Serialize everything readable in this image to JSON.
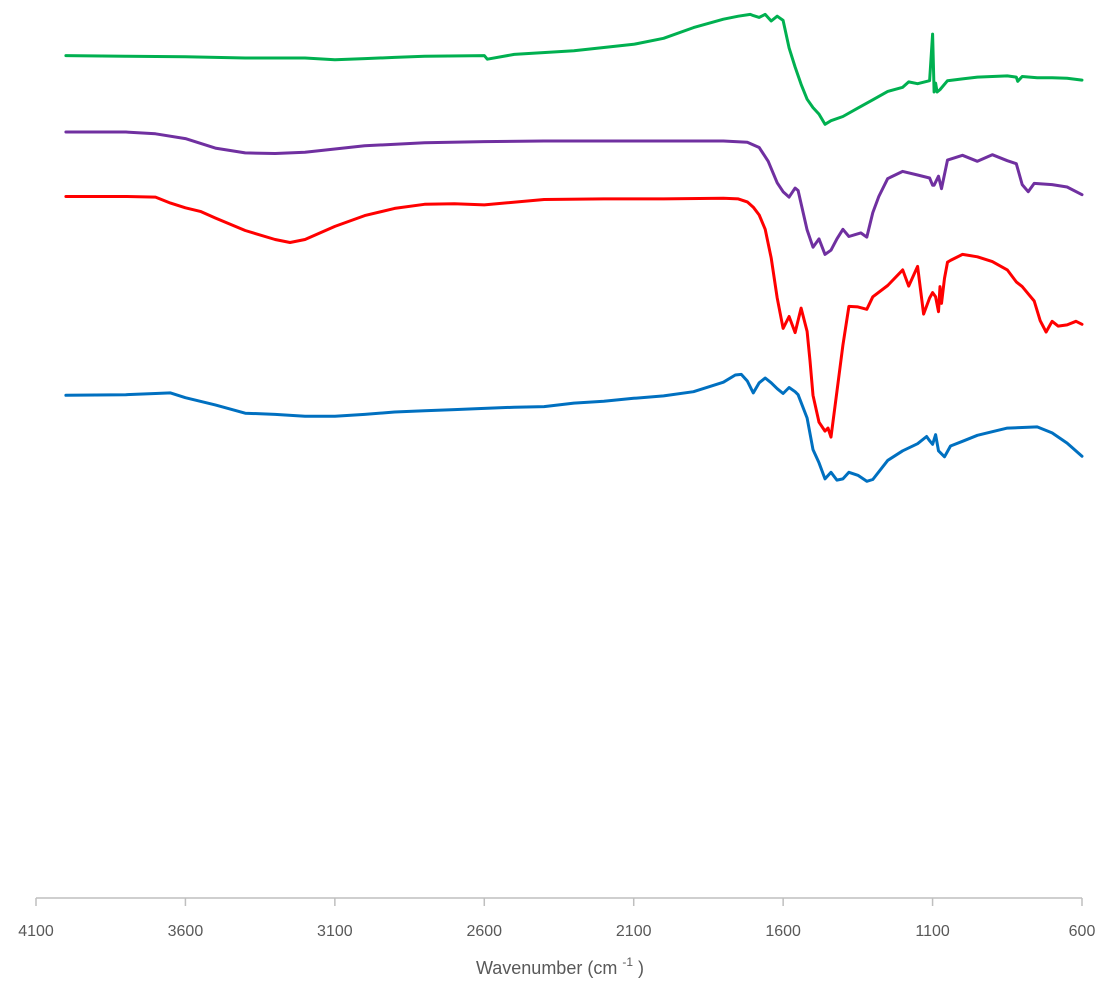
{
  "chart_data": {
    "type": "line",
    "title": "",
    "xlabel": {
      "prefix": "Wavenumber (cm",
      "superscript": "-1",
      "suffix": ")"
    },
    "ylabel": "",
    "xlim": [
      4100,
      600
    ],
    "x_reversed": true,
    "x_ticks": [
      "4100",
      "3600",
      "3100",
      "2600",
      "2100",
      "1600",
      "1100",
      "600"
    ],
    "y_axis_visible": false,
    "ylim": [
      0,
      100
    ],
    "grid": false,
    "legend": "none",
    "series": [
      {
        "color": "#00b050",
        "x": [
          4000,
          3800,
          3600,
          3400,
          3200,
          3100,
          3000,
          2900,
          2800,
          2600,
          2590,
          2500,
          2300,
          2100,
          2000,
          1900,
          1800,
          1750,
          1710,
          1700,
          1680,
          1660,
          1640,
          1620,
          1600,
          1580,
          1560,
          1540,
          1520,
          1500,
          1480,
          1460,
          1440,
          1400,
          1350,
          1300,
          1250,
          1200,
          1180,
          1150,
          1110,
          1100,
          1095,
          1090,
          1085,
          1075,
          1050,
          1000,
          950,
          900,
          850,
          820,
          815,
          800,
          750,
          700,
          650,
          600
        ],
        "y": [
          93.7,
          93.6,
          93.5,
          93.3,
          93.3,
          93.0,
          93.2,
          93.4,
          93.6,
          93.7,
          93.1,
          93.9,
          94.5,
          95.6,
          96.6,
          98.4,
          99.8,
          100.3,
          100.6,
          100.4,
          100.1,
          100.6,
          99.5,
          100.3,
          99.6,
          95.0,
          91.8,
          88.9,
          86.4,
          85.0,
          83.9,
          82.2,
          82.8,
          83.5,
          84.9,
          86.3,
          87.7,
          88.4,
          89.3,
          89.0,
          89.5,
          97.3,
          87.6,
          89.1,
          87.6,
          88.0,
          89.5,
          89.8,
          90.1,
          90.2,
          90.3,
          90.1,
          89.4,
          90.2,
          90.0,
          90.0,
          89.9,
          89.6
        ]
      },
      {
        "color": "#7030a0",
        "x": [
          4000,
          3800,
          3700,
          3600,
          3500,
          3400,
          3300,
          3200,
          3000,
          2800,
          2600,
          2400,
          2200,
          2000,
          1800,
          1720,
          1680,
          1650,
          1620,
          1600,
          1580,
          1560,
          1550,
          1520,
          1500,
          1480,
          1460,
          1440,
          1420,
          1400,
          1380,
          1360,
          1340,
          1320,
          1300,
          1280,
          1250,
          1200,
          1150,
          1110,
          1100,
          1095,
          1080,
          1070,
          1050,
          1000,
          950,
          900,
          850,
          820,
          800,
          780,
          760,
          700,
          650,
          600
        ],
        "y": [
          80.9,
          80.9,
          80.6,
          79.8,
          78.2,
          77.4,
          77.3,
          77.5,
          78.6,
          79.1,
          79.3,
          79.4,
          79.4,
          79.4,
          79.4,
          79.2,
          78.3,
          76.0,
          72.4,
          70.9,
          70.0,
          71.5,
          71.1,
          64.5,
          61.6,
          63.0,
          60.4,
          61.1,
          63.0,
          64.6,
          63.4,
          63.7,
          64.0,
          63.3,
          67.4,
          70.1,
          73.1,
          74.3,
          73.7,
          73.2,
          72.0,
          72.0,
          73.5,
          71.4,
          76.2,
          77.0,
          76.0,
          77.1,
          76.1,
          75.6,
          72.1,
          70.9,
          72.3,
          72.1,
          71.7,
          70.4
        ]
      },
      {
        "color": "#ff0000",
        "x": [
          4000,
          3800,
          3700,
          3650,
          3600,
          3550,
          3500,
          3400,
          3300,
          3250,
          3200,
          3100,
          3000,
          2900,
          2800,
          2700,
          2600,
          2400,
          2200,
          2000,
          1800,
          1750,
          1720,
          1700,
          1680,
          1660,
          1640,
          1620,
          1600,
          1580,
          1560,
          1540,
          1520,
          1510,
          1500,
          1480,
          1460,
          1450,
          1440,
          1420,
          1400,
          1380,
          1350,
          1320,
          1300,
          1250,
          1200,
          1180,
          1150,
          1130,
          1110,
          1100,
          1090,
          1080,
          1075,
          1070,
          1060,
          1050,
          1040,
          1000,
          950,
          900,
          850,
          820,
          800,
          780,
          760,
          740,
          720,
          700,
          680,
          650,
          620,
          600
        ],
        "y": [
          70.1,
          70.1,
          70.0,
          69.0,
          68.2,
          67.6,
          66.5,
          64.4,
          62.9,
          62.4,
          62.9,
          65.1,
          66.9,
          68.1,
          68.8,
          68.9,
          68.7,
          69.6,
          69.7,
          69.7,
          69.8,
          69.7,
          69.2,
          68.3,
          67.0,
          64.6,
          59.8,
          53.1,
          48.0,
          50.0,
          47.3,
          51.4,
          47.5,
          42.6,
          36.8,
          32.3,
          30.8,
          31.3,
          29.8,
          37.4,
          45.2,
          51.7,
          51.6,
          51.2,
          53.3,
          55.2,
          57.8,
          55.1,
          58.4,
          50.4,
          53.1,
          54.0,
          53.3,
          50.8,
          55.0,
          52.2,
          56.4,
          59.1,
          59.4,
          60.4,
          60.0,
          59.2,
          57.8,
          55.8,
          55.0,
          53.8,
          52.6,
          49.3,
          47.4,
          49.2,
          48.4,
          48.6,
          49.2,
          48.7
        ]
      },
      {
        "color": "#0070c0",
        "x": [
          4000,
          3800,
          3700,
          3650,
          3600,
          3500,
          3400,
          3300,
          3200,
          3100,
          3000,
          2900,
          2800,
          2700,
          2600,
          2500,
          2400,
          2300,
          2200,
          2100,
          2000,
          1900,
          1800,
          1760,
          1740,
          1720,
          1700,
          1680,
          1660,
          1640,
          1620,
          1600,
          1580,
          1560,
          1550,
          1520,
          1500,
          1480,
          1460,
          1440,
          1420,
          1400,
          1380,
          1350,
          1320,
          1300,
          1250,
          1200,
          1150,
          1120,
          1110,
          1100,
          1090,
          1080,
          1060,
          1040,
          1000,
          950,
          900,
          850,
          800,
          750,
          700,
          650,
          600
        ],
        "y": [
          36.8,
          36.9,
          37.1,
          37.2,
          36.4,
          35.2,
          33.8,
          33.6,
          33.3,
          33.3,
          33.6,
          34.0,
          34.2,
          34.4,
          34.6,
          34.8,
          34.9,
          35.5,
          35.8,
          36.3,
          36.7,
          37.4,
          39.0,
          40.2,
          40.3,
          39.2,
          37.2,
          38.9,
          39.7,
          38.9,
          37.9,
          37.1,
          38.1,
          37.4,
          36.9,
          33.0,
          27.7,
          25.5,
          22.8,
          23.9,
          22.6,
          22.8,
          23.9,
          23.4,
          22.4,
          22.7,
          25.9,
          27.5,
          28.7,
          29.9,
          29.2,
          28.6,
          30.2,
          27.5,
          26.5,
          28.3,
          29.1,
          30.1,
          30.7,
          31.3,
          31.4,
          31.5,
          30.5,
          28.8,
          26.6
        ]
      }
    ]
  }
}
